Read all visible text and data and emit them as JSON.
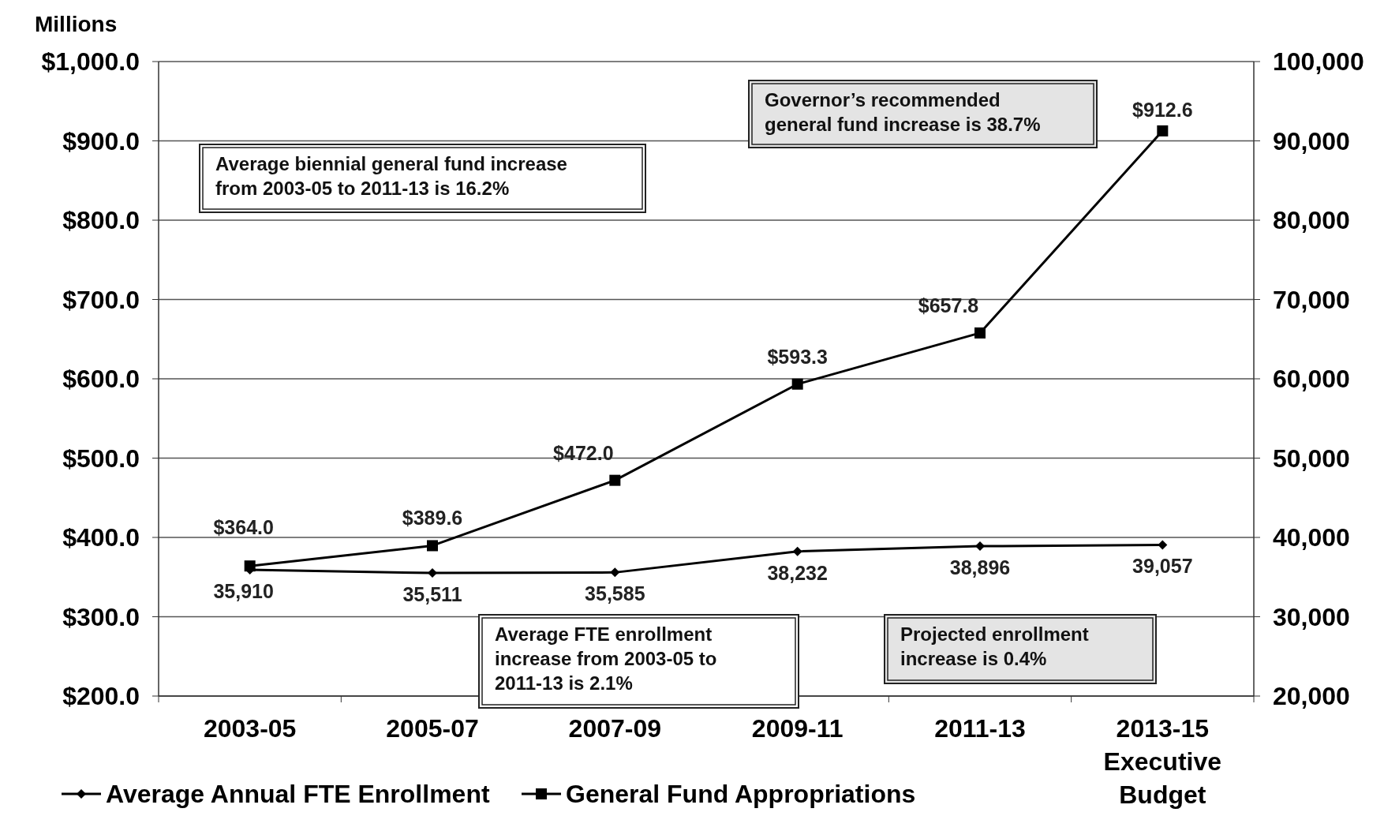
{
  "chart_data": {
    "type": "line",
    "ylabel": "Millions",
    "categories": [
      "2003-05",
      "2005-07",
      "2007-09",
      "2009-11",
      "2011-13",
      "2013-15 Executive Budget"
    ],
    "series": [
      {
        "name": "Average Annual FTE Enrollment",
        "color": "#000000",
        "marker": "diamond",
        "axis": "y2",
        "values": [
          35910,
          35511,
          35585,
          38232,
          38896,
          39057
        ],
        "value_labels": [
          "35,910",
          "35,511",
          "35,585",
          "38,232",
          "38,896",
          "39,057"
        ]
      },
      {
        "name": "General Fund Appropriations",
        "color": "#000000",
        "marker": "square",
        "values": [
          364.0,
          389.6,
          472.0,
          593.3,
          657.8,
          912.6
        ],
        "value_labels": [
          "$364.0",
          "$389.6",
          "$472.0",
          "$593.3",
          "$657.8",
          "$912.6"
        ]
      }
    ],
    "ylim": [
      200,
      1000
    ],
    "yticks": [
      {
        "value": 200,
        "label": "$200.0"
      },
      {
        "value": 300,
        "label": "$300.0"
      },
      {
        "value": 400,
        "label": "$400.0"
      },
      {
        "value": 500,
        "label": "$500.0"
      },
      {
        "value": 600,
        "label": "$600.0"
      },
      {
        "value": 700,
        "label": "$700.0"
      },
      {
        "value": 800,
        "label": "$800.0"
      },
      {
        "value": 900,
        "label": "$900.0"
      },
      {
        "value": 1000,
        "label": "$1,000.0"
      }
    ],
    "y2lim": [
      20000,
      100000
    ],
    "y2ticks": [
      {
        "value": 20000,
        "label": "20,000"
      },
      {
        "value": 30000,
        "label": "30,000"
      },
      {
        "value": 40000,
        "label": "40,000"
      },
      {
        "value": 50000,
        "label": "50,000"
      },
      {
        "value": 60000,
        "label": "60,000"
      },
      {
        "value": 70000,
        "label": "70,000"
      },
      {
        "value": 80000,
        "label": "80,000"
      },
      {
        "value": 90000,
        "label": "90,000"
      },
      {
        "value": 100000,
        "label": "100,000"
      }
    ],
    "grid": "y",
    "legend": "bottom",
    "annotations": [
      "Average biennial general fund increase from 2003-05 to 2011-13 is 16.2%",
      "Governor’s recommended general fund increase is 38.7%",
      "Average FTE enrollment increase from 2003-05 to 2011-13 is 2.1%",
      "Projected enrollment increase is 0.4%"
    ]
  }
}
